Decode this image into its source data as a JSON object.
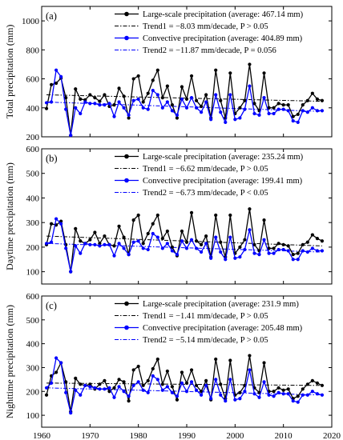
{
  "chart_data": [
    {
      "type": "line",
      "panel_label": "(a)",
      "ylabel": "Total precipitation (mm)",
      "ylim": [
        200,
        1100
      ],
      "yticks": [
        200,
        400,
        600,
        800,
        1000
      ],
      "xlim": [
        1960,
        2020
      ],
      "xticks": [
        1960,
        1970,
        1980,
        1990,
        2000,
        2010,
        2020
      ],
      "grid": false,
      "legend_position": "top-right",
      "x": [
        1961,
        1962,
        1963,
        1964,
        1965,
        1966,
        1967,
        1968,
        1969,
        1970,
        1971,
        1972,
        1973,
        1974,
        1975,
        1976,
        1977,
        1978,
        1979,
        1980,
        1981,
        1982,
        1983,
        1984,
        1985,
        1986,
        1987,
        1988,
        1989,
        1990,
        1991,
        1992,
        1993,
        1994,
        1995,
        1996,
        1997,
        1998,
        1999,
        2000,
        2001,
        2002,
        2003,
        2004,
        2005,
        2006,
        2007,
        2008,
        2009,
        2010,
        2011,
        2012,
        2013,
        2014,
        2015,
        2016,
        2017,
        2018
      ],
      "series": [
        {
          "name": "Large-scale precipitation (average: 467.14 mm)",
          "color": "#000000",
          "values": [
            395,
            560,
            570,
            605,
            470,
            210,
            530,
            460,
            455,
            490,
            470,
            445,
            490,
            410,
            420,
            535,
            480,
            330,
            600,
            620,
            440,
            500,
            590,
            660,
            470,
            550,
            420,
            330,
            545,
            460,
            620,
            450,
            410,
            490,
            330,
            660,
            450,
            330,
            640,
            360,
            400,
            450,
            700,
            430,
            380,
            640,
            400,
            400,
            430,
            420,
            420,
            340,
            355,
            420,
            450,
            500,
            460,
            450
          ]
        },
        {
          "name": "Convective precipitation (average: 404.89 mm)",
          "color": "#0000ff",
          "values": [
            435,
            440,
            660,
            615,
            390,
            210,
            400,
            360,
            440,
            430,
            430,
            420,
            420,
            430,
            340,
            440,
            400,
            350,
            450,
            460,
            400,
            390,
            520,
            490,
            400,
            440,
            380,
            350,
            460,
            400,
            470,
            400,
            370,
            440,
            320,
            490,
            370,
            300,
            490,
            320,
            330,
            390,
            550,
            360,
            350,
            470,
            360,
            360,
            390,
            390,
            380,
            310,
            300,
            380,
            370,
            400,
            380,
            380
          ]
        }
      ],
      "trends": [
        {
          "name": "Trend1 = −8.03 mm/decade, P > 0.05",
          "color": "#000000",
          "start": 490,
          "end": 445
        },
        {
          "name": "Trend2 = −11.87 mm/decade, P = 0.056",
          "color": "#0000ff",
          "start": 440,
          "end": 375
        }
      ]
    },
    {
      "type": "line",
      "panel_label": "(b)",
      "ylabel": "Daytime precipitation (mm)",
      "ylim": [
        50,
        600
      ],
      "yticks": [
        100,
        200,
        300,
        400,
        500,
        600
      ],
      "xlim": [
        1960,
        2020
      ],
      "xticks": [
        1960,
        1970,
        1980,
        1990,
        2000,
        2010,
        2020
      ],
      "grid": false,
      "legend_position": "top-right",
      "x": [
        1961,
        1962,
        1963,
        1964,
        1965,
        1966,
        1967,
        1968,
        1969,
        1970,
        1971,
        1972,
        1973,
        1974,
        1975,
        1976,
        1977,
        1978,
        1979,
        1980,
        1981,
        1982,
        1983,
        1984,
        1985,
        1986,
        1987,
        1988,
        1989,
        1990,
        1991,
        1992,
        1993,
        1994,
        1995,
        1996,
        1997,
        1998,
        1999,
        2000,
        2001,
        2002,
        2003,
        2004,
        2005,
        2006,
        2007,
        2008,
        2009,
        2010,
        2011,
        2012,
        2013,
        2014,
        2015,
        2016,
        2017,
        2018
      ],
      "series": [
        {
          "name": "Large-scale precipitation (average: 235.24 mm)",
          "color": "#000000",
          "values": [
            210,
            295,
            290,
            305,
            210,
            100,
            275,
            225,
            215,
            230,
            260,
            215,
            245,
            210,
            205,
            285,
            240,
            170,
            310,
            330,
            215,
            255,
            295,
            330,
            235,
            265,
            200,
            165,
            265,
            220,
            340,
            225,
            210,
            245,
            160,
            330,
            220,
            160,
            330,
            175,
            200,
            230,
            355,
            210,
            185,
            310,
            195,
            195,
            215,
            210,
            205,
            170,
            175,
            210,
            220,
            250,
            235,
            225
          ]
        },
        {
          "name": "Convective precipitation (average: 199.41 mm)",
          "color": "#0000ff",
          "values": [
            215,
            220,
            315,
            295,
            195,
            100,
            205,
            175,
            215,
            210,
            210,
            205,
            210,
            210,
            165,
            215,
            195,
            170,
            220,
            225,
            195,
            190,
            255,
            240,
            195,
            215,
            185,
            170,
            225,
            195,
            230,
            195,
            180,
            215,
            155,
            240,
            180,
            150,
            240,
            155,
            160,
            190,
            270,
            175,
            170,
            230,
            175,
            175,
            190,
            190,
            185,
            150,
            150,
            185,
            180,
            195,
            185,
            185
          ]
        }
      ],
      "trends": [
        {
          "name": "Trend1 = −6.62 mm/decade, P > 0.05",
          "color": "#000000",
          "start": 245,
          "end": 205
        },
        {
          "name": "Trend2 = −6.73 mm/decade, P < 0.05",
          "color": "#0000ff",
          "start": 215,
          "end": 180
        }
      ]
    },
    {
      "type": "line",
      "panel_label": "(c)",
      "ylabel": "Nighttime precipitation (mm)",
      "ylim": [
        50,
        600
      ],
      "yticks": [
        100,
        200,
        300,
        400,
        500,
        600
      ],
      "xlim": [
        1960,
        2020
      ],
      "xticks": [
        1960,
        1970,
        1980,
        1990,
        2000,
        2010,
        2020
      ],
      "grid": false,
      "legend_position": "top-right",
      "x": [
        1961,
        1962,
        1963,
        1964,
        1965,
        1966,
        1967,
        1968,
        1969,
        1970,
        1971,
        1972,
        1973,
        1974,
        1975,
        1976,
        1977,
        1978,
        1979,
        1980,
        1981,
        1982,
        1983,
        1984,
        1985,
        1986,
        1987,
        1988,
        1989,
        1990,
        1991,
        1992,
        1993,
        1994,
        1995,
        1996,
        1997,
        1998,
        1999,
        2000,
        2001,
        2002,
        2003,
        2004,
        2005,
        2006,
        2007,
        2008,
        2009,
        2010,
        2011,
        2012,
        2013,
        2014,
        2015,
        2016,
        2017,
        2018
      ],
      "series": [
        {
          "name": "Large-scale precipitation (average: 231.9 mm)",
          "color": "#000000",
          "values": [
            185,
            265,
            280,
            320,
            240,
            115,
            255,
            230,
            225,
            230,
            210,
            230,
            245,
            200,
            215,
            250,
            240,
            160,
            290,
            305,
            225,
            245,
            295,
            335,
            230,
            285,
            220,
            165,
            280,
            235,
            290,
            225,
            200,
            245,
            165,
            335,
            230,
            170,
            330,
            185,
            195,
            225,
            350,
            215,
            195,
            320,
            200,
            200,
            215,
            205,
            210,
            170,
            180,
            210,
            230,
            245,
            235,
            225
          ]
        },
        {
          "name": "Convective precipitation (average: 205.48 mm)",
          "color": "#0000ff",
          "values": [
            215,
            235,
            340,
            320,
            195,
            110,
            205,
            185,
            225,
            220,
            215,
            210,
            210,
            215,
            175,
            220,
            200,
            180,
            225,
            240,
            205,
            195,
            265,
            250,
            205,
            220,
            195,
            180,
            235,
            200,
            240,
            205,
            185,
            225,
            170,
            250,
            185,
            160,
            250,
            165,
            170,
            200,
            290,
            190,
            175,
            240,
            185,
            180,
            195,
            190,
            190,
            160,
            155,
            185,
            185,
            200,
            190,
            185
          ]
        }
      ],
      "trends": [
        {
          "name": "Trend1 = −1.41 mm/decade, P > 0.05",
          "color": "#000000",
          "start": 235,
          "end": 225
        },
        {
          "name": "Trend2 = −5.14 mm/decade, P > 0.05",
          "color": "#0000ff",
          "start": 215,
          "end": 185
        }
      ]
    }
  ]
}
